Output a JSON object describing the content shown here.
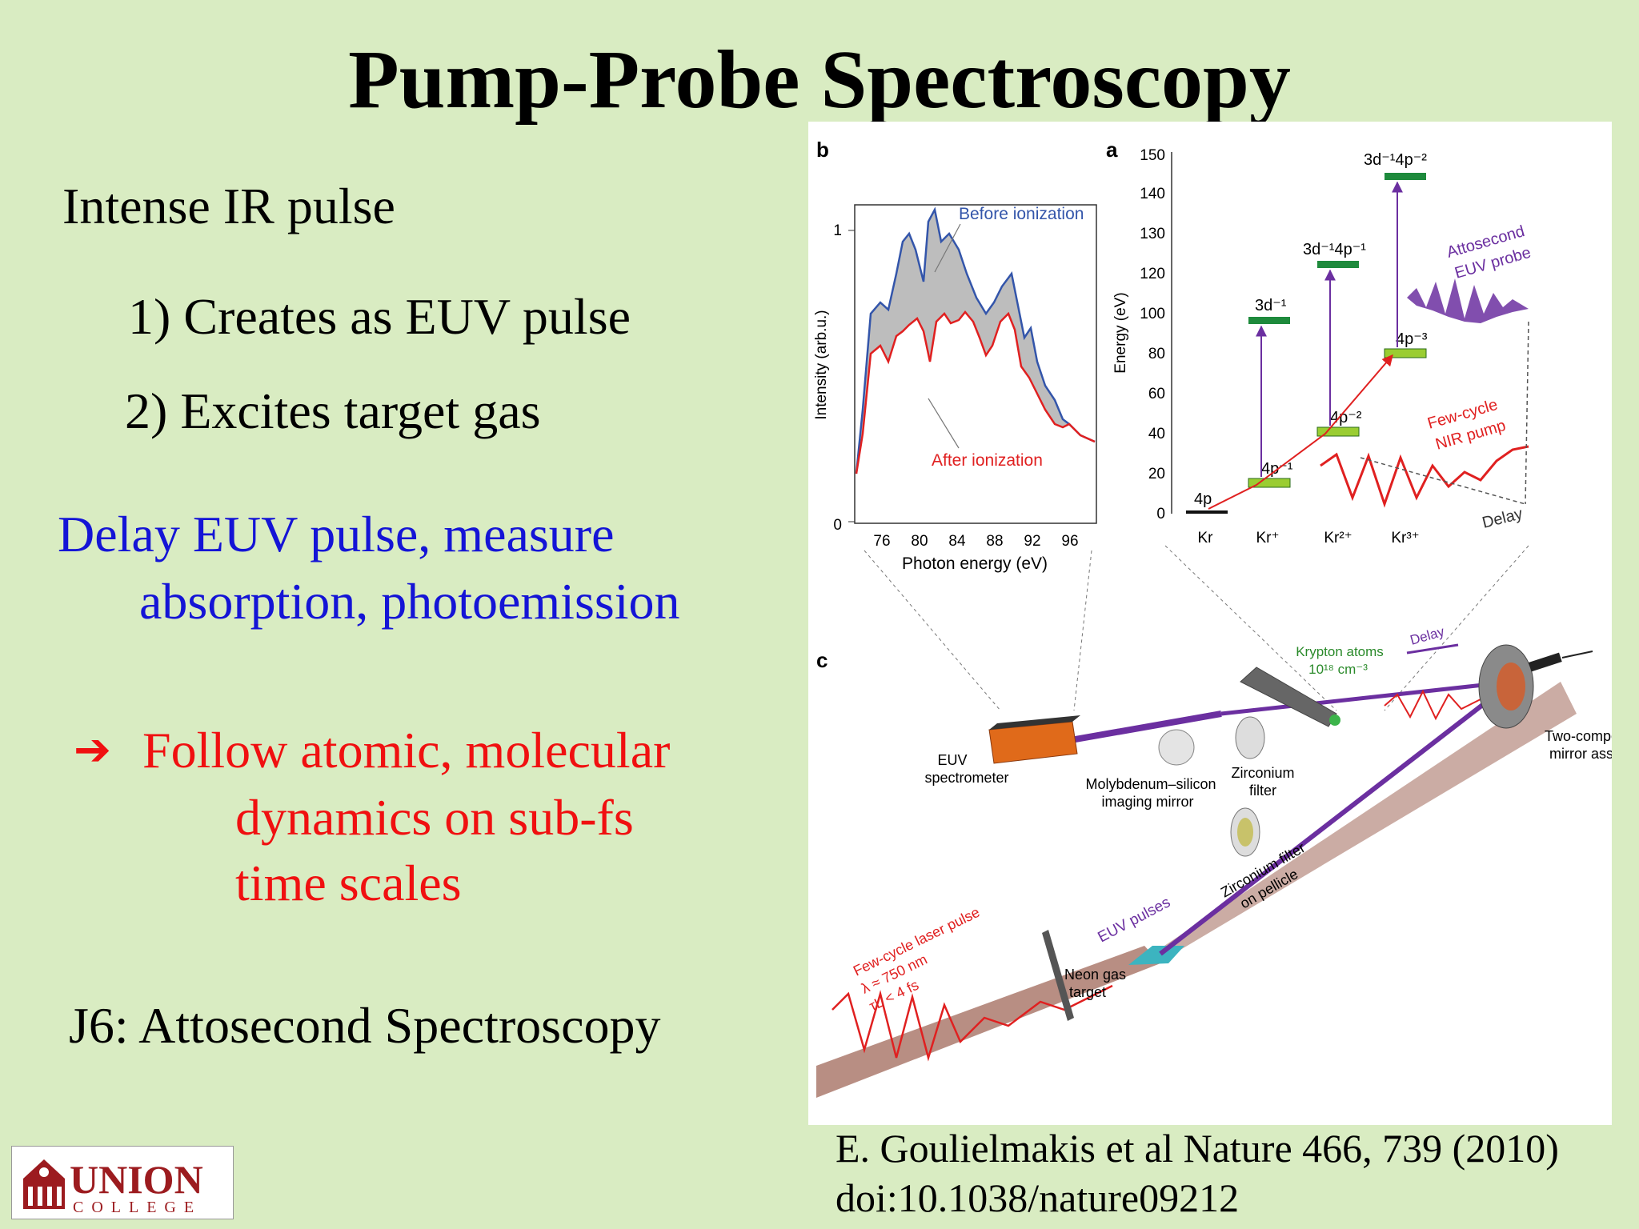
{
  "title": "Pump-Probe Spectroscopy",
  "bullets": {
    "intense": "Intense IR pulse",
    "item1": "1) Creates as EUV pulse",
    "item2": "2) Excites target gas",
    "delay_line1": "Delay EUV pulse, measure",
    "delay_line2": "absorption, photoemission",
    "arrow": "➔",
    "follow_line1": "Follow atomic, molecular",
    "follow_line2": "dynamics on sub-fs",
    "follow_line3": "time scales",
    "j6": "J6: Attosecond Spectroscopy"
  },
  "citation": {
    "line1": "E. Goulielmakis et al Nature 466, 739 (2010)",
    "line2": "doi:10.1038/nature09212"
  },
  "logo": {
    "name": "UNION",
    "sub": "COLLEGE"
  },
  "colors": {
    "background": "#d9ecc2",
    "blue_text": "#1414d6",
    "red_text": "#f01010",
    "logo_red": "#9c1b1f",
    "energy_level": "#1e8a3c",
    "energy_level_light": "#9acd32",
    "excitation": "#6b2fa0",
    "before_line": "#3355aa",
    "after_line": "#e02020"
  },
  "figure": {
    "panel_b": {
      "label": "b",
      "ylabel": "Intensity (arb.u.)",
      "xlabel": "Photon energy (eV)",
      "y_ticks": [
        "0",
        "1"
      ],
      "x_ticks": [
        "76",
        "80",
        "84",
        "88",
        "92",
        "96"
      ],
      "legend_before": "Before ionization",
      "legend_after": "After ionization"
    },
    "panel_a": {
      "label": "a",
      "ylabel": "Energy (eV)",
      "y_ticks": [
        "0",
        "20",
        "40",
        "60",
        "80",
        "100",
        "120",
        "130",
        "140",
        "150"
      ],
      "categories": [
        "Kr",
        "Kr⁺",
        "Kr²⁺",
        "Kr³⁺"
      ],
      "levels": {
        "l4p": "4p",
        "l4p1": "4p⁻¹",
        "l4p2": "4p⁻²",
        "l4p3": "4p⁻³",
        "l3d1": "3d⁻¹",
        "l3d4p1": "3d⁻¹4p⁻¹",
        "l3d4p2": "3d⁻¹4p⁻²"
      },
      "probe_l1": "Attosecond",
      "probe_l2": "EUV probe",
      "pump_l1": "Few-cycle",
      "pump_l2": "NIR pump",
      "delay": "Delay"
    },
    "panel_c": {
      "label": "c",
      "spectrometer_l1": "EUV",
      "spectrometer_l2": "spectrometer",
      "mirror_l1": "Molybdenum–silicon",
      "mirror_l2": "imaging mirror",
      "zr_l1": "Zirconium",
      "zr_l2": "filter",
      "krypton_l1": "Krypton atoms",
      "krypton_l2": "10¹⁸ cm⁻³",
      "delay": "Delay",
      "twocomp_l1": "Two-component",
      "twocomp_l2": "mirror assembly",
      "zrpel_l1": "Zirconium filter",
      "zrpel_l2": "on pellicle",
      "euv_pulses": "EUV pulses",
      "laser_l1": "Few-cycle laser pulse",
      "laser_l2": "λ ≈ 750 nm",
      "laser_l3": "τL < 4 fs",
      "neon_l1": "Neon gas",
      "neon_l2": "target"
    }
  }
}
